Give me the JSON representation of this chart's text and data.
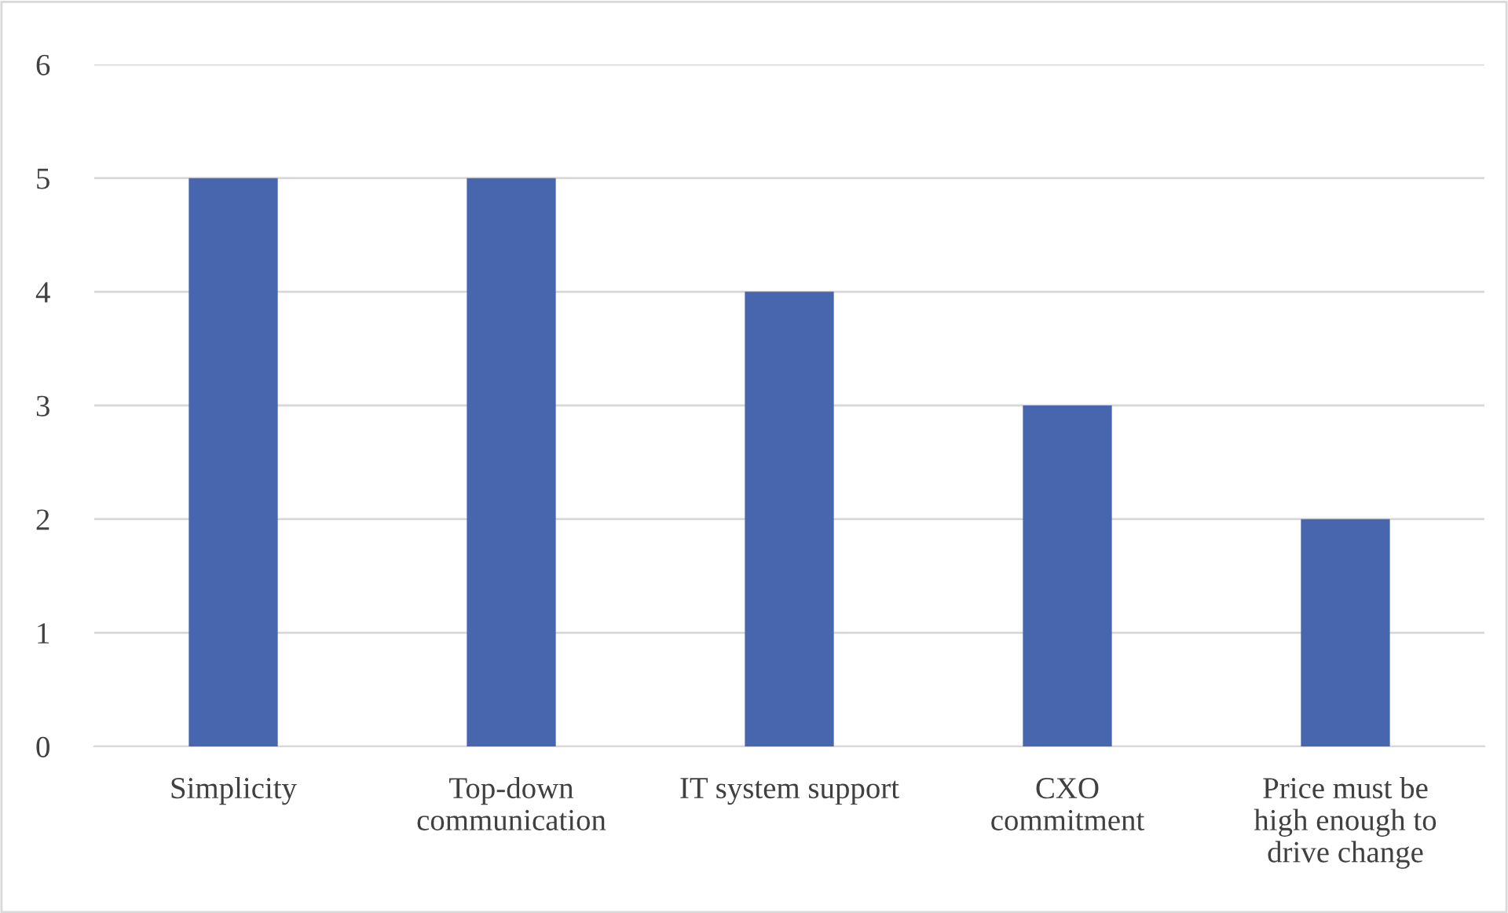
{
  "chart_data": {
    "type": "bar",
    "categories": [
      "Simplicity",
      "Top-down\ncommunication",
      "IT system support",
      "CXO\ncommitment",
      "Price must be\nhigh enough to\ndrive change"
    ],
    "values": [
      5,
      5,
      4,
      3,
      2
    ],
    "color": "#4866ad",
    "ylim": [
      0,
      6
    ],
    "yticks": [
      0,
      1,
      2,
      3,
      4,
      5,
      6
    ],
    "grid": "y",
    "legend": false
  }
}
